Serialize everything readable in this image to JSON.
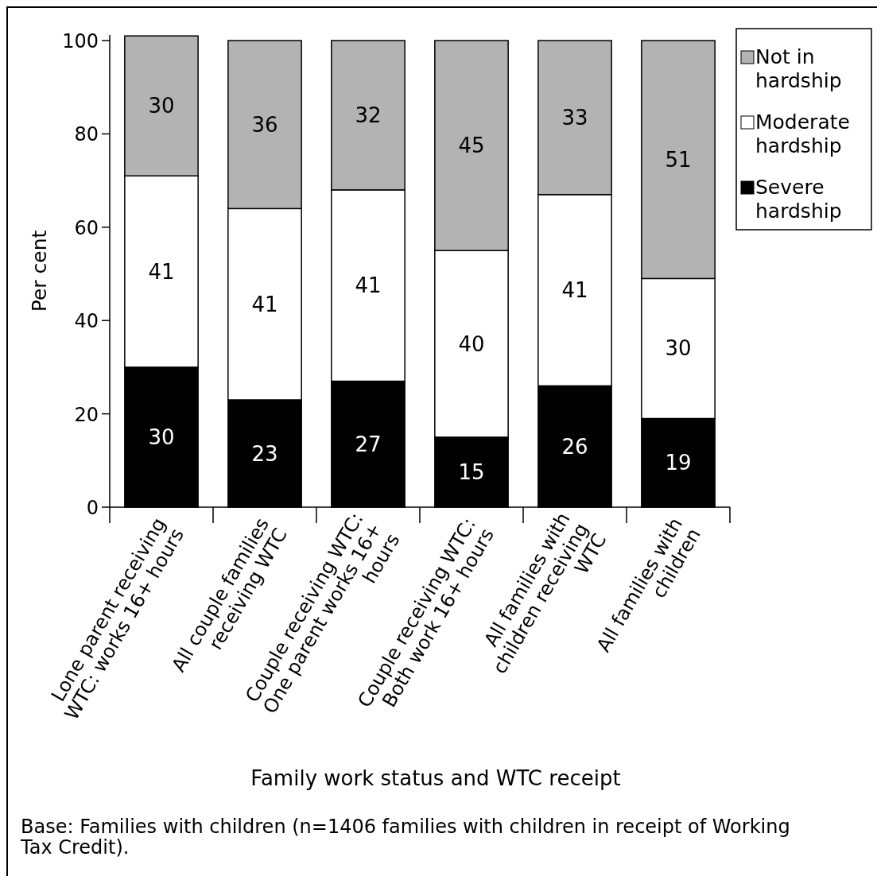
{
  "chart_data": {
    "type": "bar",
    "stacked": true,
    "xlabel": "Family work status and WTC receipt",
    "ylabel": "Per cent",
    "categories": [
      "Lone parent receiving WTC: works 16+ hours",
      "All couple families receiving WTC",
      "Couple receiving WTC: One parent works 16+ hours",
      "Couple receiving WTC: Both work 16+ hours",
      "All families with children receiving WTC",
      "All families with children"
    ],
    "series": [
      {
        "name": "Severe hardship",
        "color": "#000000",
        "values": [
          30,
          23,
          27,
          15,
          26,
          19
        ]
      },
      {
        "name": "Moderate hardship",
        "color": "#ffffff",
        "values": [
          41,
          41,
          41,
          40,
          41,
          30
        ]
      },
      {
        "name": "Not in hardship",
        "color": "#b3b3b3",
        "values": [
          30,
          36,
          32,
          45,
          33,
          51
        ]
      }
    ],
    "ylim": [
      0,
      101.2
    ],
    "yticks": [
      0,
      20,
      40,
      60,
      80,
      100
    ],
    "data_labels": true,
    "legend": "top right",
    "grid": false,
    "annotations": [
      "Base: Families with children (n=1406 families with children in receipt of Working Tax Credit)."
    ]
  }
}
